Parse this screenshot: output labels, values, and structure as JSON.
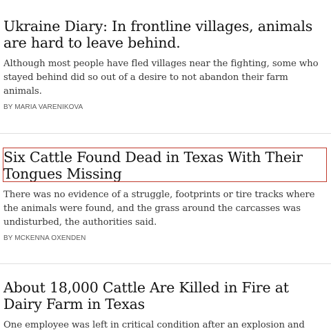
{
  "articles": [
    {
      "headline": "Ukraine Diary: In frontline villages, animals are hard to leave behind.",
      "summary": "Although most people have fled villages near the fighting, some who stayed behind did so out of a desire to not abandon their farm animals.",
      "byline": "By MARIA VARENIKOVA"
    },
    {
      "headline": "Six Cattle Found Dead in Texas With Their Tongues Missing",
      "summary": "There was no evidence of a struggle, footprints or tire tracks where the animals were found, and the grass around the carcasses was undisturbed, the authorities said.",
      "byline": "By MCKENNA OXENDEN"
    },
    {
      "headline": "About 18,000 Cattle Are Killed in Fire at Dairy Farm in Texas",
      "summary": "One employee was left in critical condition after an explosion and blaze in"
    }
  ],
  "colors": {
    "focus_outline": "#c0392b",
    "divider": "#dfdfdf",
    "headline_text": "#121212",
    "summary_text": "#363636",
    "byline_text": "#5a5a5a"
  }
}
